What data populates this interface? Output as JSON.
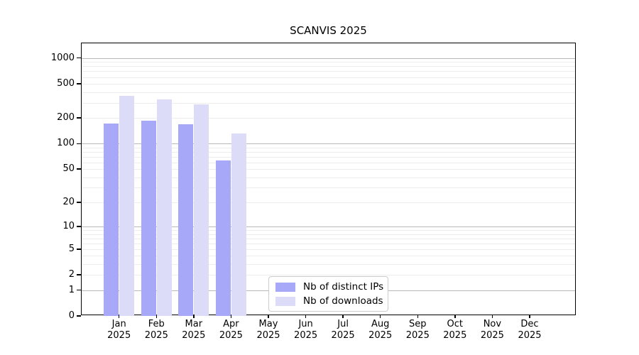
{
  "chart_data": {
    "type": "bar",
    "title": "SCANVIS 2025",
    "categories": [
      "Jan 2025",
      "Feb 2025",
      "Mar 2025",
      "Apr 2025",
      "May 2025",
      "Jun 2025",
      "Jul 2025",
      "Aug 2025",
      "Sep 2025",
      "Oct 2025",
      "Nov 2025",
      "Dec 2025"
    ],
    "x_tick_lines": [
      [
        "Jan",
        "2025"
      ],
      [
        "Feb",
        "2025"
      ],
      [
        "Mar",
        "2025"
      ],
      [
        "Apr",
        "2025"
      ],
      [
        "May",
        "2025"
      ],
      [
        "Jun",
        "2025"
      ],
      [
        "Jul",
        "2025"
      ],
      [
        "Aug",
        "2025"
      ],
      [
        "Sep",
        "2025"
      ],
      [
        "Oct",
        "2025"
      ],
      [
        "Nov",
        "2025"
      ],
      [
        "Dec",
        "2025"
      ]
    ],
    "series": [
      {
        "name": "Nb of distinct IPs",
        "color": "#a8a8f8",
        "values": [
          173,
          187,
          168,
          63,
          0,
          0,
          0,
          0,
          0,
          0,
          0,
          0
        ]
      },
      {
        "name": "Nb of downloads",
        "color": "#dcdcf9",
        "values": [
          360,
          332,
          289,
          132,
          0,
          0,
          0,
          0,
          0,
          0,
          0,
          0
        ]
      }
    ],
    "xlabel": "",
    "ylabel": "",
    "y_scale": "log10(value+1)",
    "y_ticks": [
      0,
      1,
      2,
      5,
      10,
      20,
      50,
      100,
      200,
      500,
      1000
    ],
    "ylim": [
      0,
      1480
    ],
    "grid": {
      "major_lines": [
        1,
        10,
        100,
        1000
      ],
      "minor_lines": [
        2,
        3,
        4,
        5,
        6,
        7,
        8,
        9,
        20,
        30,
        40,
        50,
        60,
        70,
        80,
        90,
        200,
        300,
        400,
        500,
        600,
        700,
        800,
        900
      ]
    },
    "legend": {
      "position": "lower center",
      "entries": [
        "Nb of distinct IPs",
        "Nb of downloads"
      ]
    },
    "colors": {
      "major_grid": "#b9b9b9",
      "minor_grid": "#ededed",
      "spine": "#000000",
      "text": "#000000",
      "background": "#ffffff"
    }
  }
}
